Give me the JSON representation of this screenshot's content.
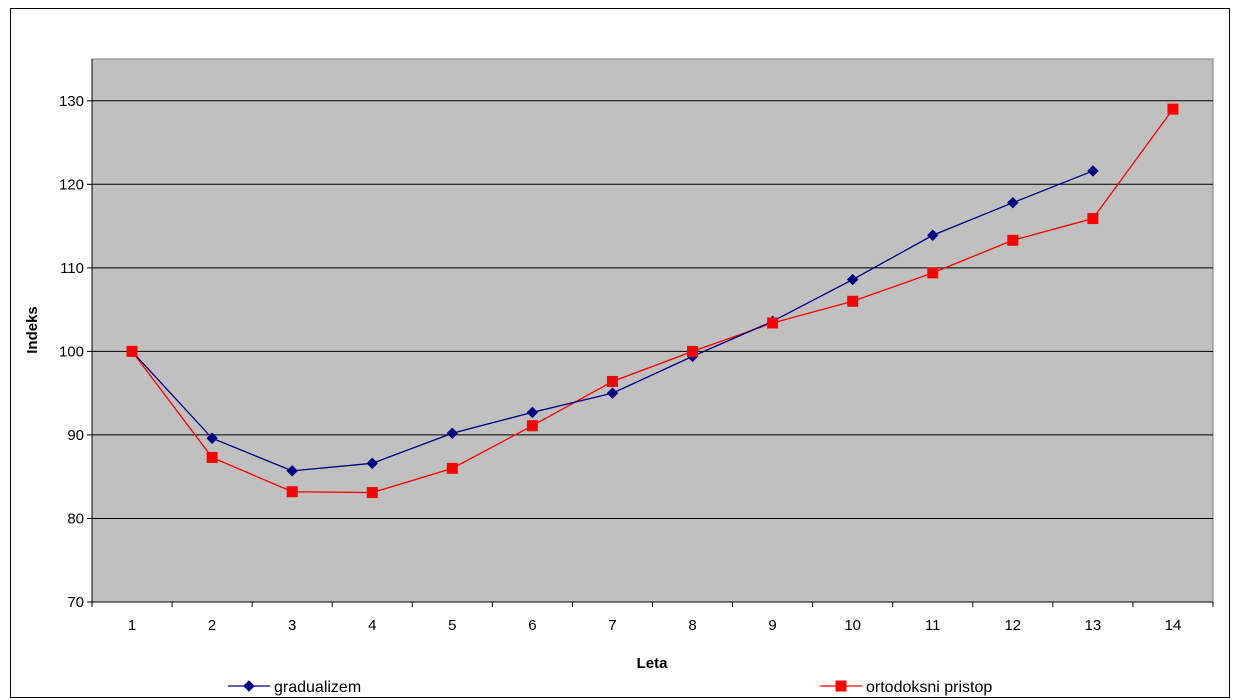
{
  "chart_data": {
    "type": "line",
    "categories": [
      "1",
      "2",
      "3",
      "4",
      "5",
      "6",
      "7",
      "8",
      "9",
      "10",
      "11",
      "12",
      "13",
      "14"
    ],
    "xlabel": "Leta",
    "ylabel": "Indeks",
    "ylim": [
      70,
      135
    ],
    "yticks": [
      70,
      80,
      90,
      100,
      110,
      120,
      130
    ],
    "grid": true,
    "plot_background": "#c0c0c0",
    "legend_position": "bottom",
    "series": [
      {
        "name": "gradualizem",
        "color": "#000080",
        "marker": "diamond",
        "values": [
          100,
          89.6,
          85.7,
          86.6,
          90.2,
          92.7,
          95.0,
          99.4,
          103.6,
          108.6,
          113.9,
          117.8,
          121.6,
          null
        ]
      },
      {
        "name": "ortodoksni pristop",
        "color": "#ff0000",
        "marker": "square",
        "values": [
          100,
          87.3,
          83.2,
          83.1,
          86.0,
          91.1,
          96.4,
          100.0,
          103.4,
          106.0,
          109.4,
          113.3,
          115.9,
          129.0
        ]
      }
    ]
  }
}
